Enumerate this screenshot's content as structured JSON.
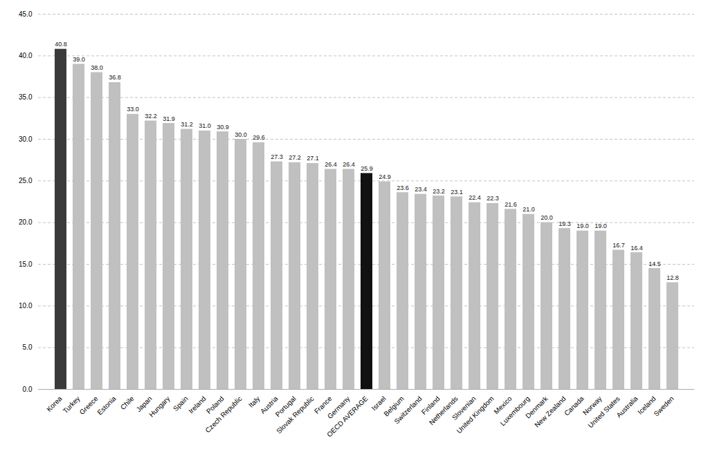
{
  "chart_data": {
    "type": "bar",
    "categories": [
      "Korea",
      "Turkey",
      "Greece",
      "Estonia",
      "Chile",
      "Japan",
      "Hungary",
      "Spain",
      "Ireland",
      "Poland",
      "Czech Republic",
      "Italy",
      "Austria",
      "Portugal",
      "Slovak Republic",
      "France",
      "Germany",
      "OECD AVERAGE",
      "Israel",
      "Belgium",
      "Switzerland",
      "Finland",
      "Netherlands",
      "Slovenian",
      "United Kingdom",
      "Mexico",
      "Luxembourg",
      "Denmark",
      "New Zealand",
      "Canada",
      "Norway",
      "United States",
      "Australia",
      "Iceland",
      "Sweden"
    ],
    "values": [
      40.8,
      39.0,
      38.0,
      36.8,
      33.0,
      32.2,
      31.9,
      31.2,
      31.0,
      30.9,
      30.0,
      29.6,
      27.3,
      27.2,
      27.1,
      26.4,
      26.4,
      25.9,
      24.9,
      23.6,
      23.4,
      23.2,
      23.1,
      22.4,
      22.3,
      21.6,
      21.0,
      20.0,
      19.3,
      19.0,
      19.0,
      16.7,
      16.4,
      14.5,
      12.8
    ],
    "value_labels": [
      "40.8",
      "39.0",
      "38.0",
      "36.8",
      "33.0",
      "32.2",
      "31.9",
      "31.2",
      "31.0",
      "30.9",
      "30.0",
      "29.6",
      "27.3",
      "27.2",
      "27.1",
      "26.4",
      "26.4",
      "25.9",
      "24.9",
      "23.6",
      "23.4",
      "23.2",
      "23.1",
      "22.4",
      "22.3",
      "21.6",
      "21.0",
      "20.0",
      "19.3",
      "19.0",
      "19.0",
      "16.7",
      "16.4",
      "14.5",
      "12.8"
    ],
    "colors": [
      "#3a3a3a",
      "#c0c0c0",
      "#c0c0c0",
      "#c0c0c0",
      "#c0c0c0",
      "#c0c0c0",
      "#c0c0c0",
      "#c0c0c0",
      "#c0c0c0",
      "#c0c0c0",
      "#c0c0c0",
      "#c0c0c0",
      "#c0c0c0",
      "#c0c0c0",
      "#c0c0c0",
      "#c0c0c0",
      "#c0c0c0",
      "#111111",
      "#c0c0c0",
      "#c0c0c0",
      "#c0c0c0",
      "#c0c0c0",
      "#c0c0c0",
      "#c0c0c0",
      "#c0c0c0",
      "#c0c0c0",
      "#c0c0c0",
      "#c0c0c0",
      "#c0c0c0",
      "#c0c0c0",
      "#c0c0c0",
      "#c0c0c0",
      "#c0c0c0",
      "#c0c0c0",
      "#c0c0c0"
    ],
    "ylim": [
      0,
      45
    ],
    "yticks": [
      {
        "value": 0,
        "label": "0.0"
      },
      {
        "value": 5,
        "label": "5.0"
      },
      {
        "value": 10,
        "label": "10.0"
      },
      {
        "value": 15,
        "label": "15.0"
      },
      {
        "value": 20,
        "label": "20.0"
      },
      {
        "value": 25,
        "label": "25.0"
      },
      {
        "value": 30,
        "label": "30.0"
      },
      {
        "value": 35,
        "label": "35.0"
      },
      {
        "value": 40,
        "label": "40.0"
      },
      {
        "value": 45,
        "label": "45.0"
      }
    ],
    "grid": true,
    "data_labels": true
  }
}
